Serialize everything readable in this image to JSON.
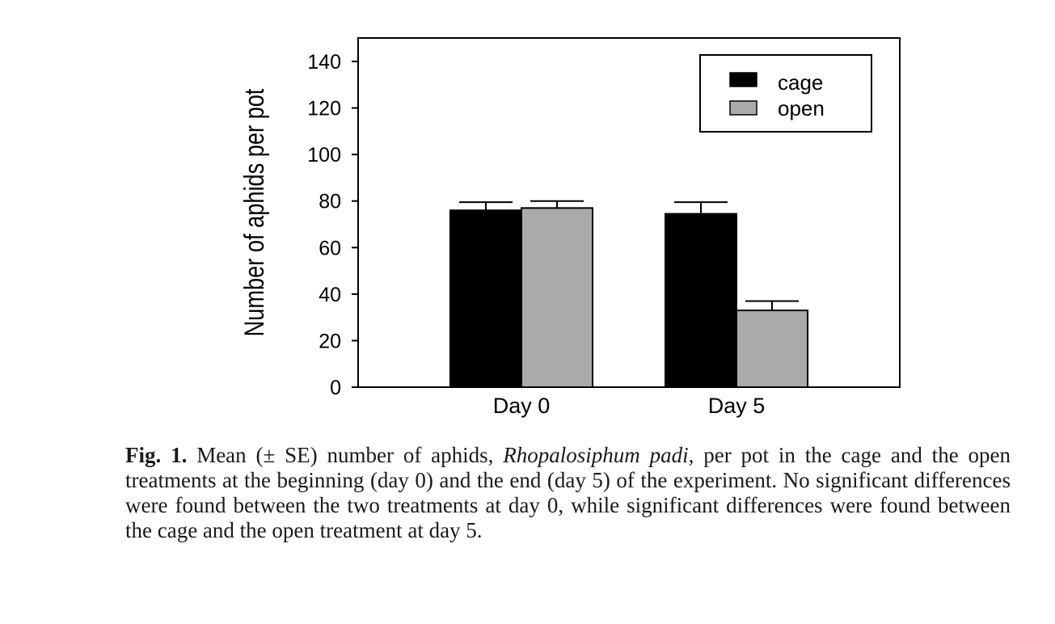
{
  "chart_data": {
    "type": "bar",
    "categories": [
      "Day 0",
      "Day 5"
    ],
    "series": [
      {
        "name": "cage",
        "values": [
          76,
          74.5
        ],
        "errors": [
          3.5,
          5
        ],
        "color": "#000000"
      },
      {
        "name": "open",
        "values": [
          77,
          33
        ],
        "errors": [
          3,
          4
        ],
        "color": "#aaaaaa"
      }
    ],
    "title": "",
    "xlabel": "",
    "ylabel": "Number of aphids per pot",
    "ylim": [
      0,
      150
    ],
    "yticks": [
      "0",
      "20",
      "40",
      "60",
      "80",
      "100",
      "120",
      "140"
    ],
    "grid": false,
    "legend_position": "top-right"
  },
  "caption": {
    "fig_label": "Fig. 1.",
    "text_before": " Mean (± SE) number of aphids, ",
    "species": "Rhopalosiphum padi",
    "text_after": ", per pot in the cage and the open treatments at the beginning (day 0) and the end (day 5) of the experiment. No significant differences were found between the two treatments at day 0, while significant differences were found between the cage and the open treatment at day 5."
  }
}
